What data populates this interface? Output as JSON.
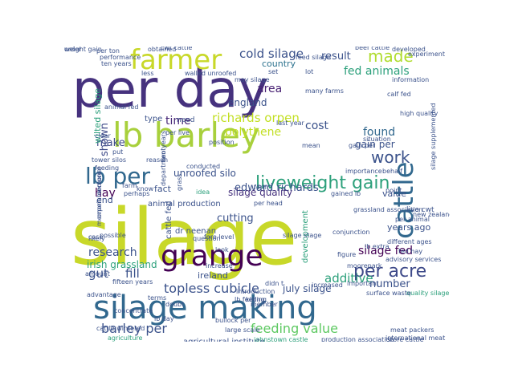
{
  "words": [
    {
      "text": "silage",
      "color": "#c8d829",
      "size": 96
    },
    {
      "text": "per day",
      "color": "#46327e",
      "size": 64
    },
    {
      "text": "silage making",
      "color": "#31688e",
      "size": 40
    },
    {
      "text": "lb barley",
      "color": "#a8d03c",
      "size": 42
    },
    {
      "text": "grange",
      "color": "#440154",
      "size": 36
    },
    {
      "text": "farmer",
      "color": "#c8d829",
      "size": 34
    },
    {
      "text": "cattle",
      "color": "#31688e",
      "size": 34
    },
    {
      "text": "lb per",
      "color": "#31688e",
      "size": 28
    },
    {
      "text": "liveweight gain",
      "color": "#2ca07b",
      "size": 22
    },
    {
      "text": "per acre",
      "color": "#3e4a89",
      "size": 22
    },
    {
      "text": "made",
      "color": "#b0dc30",
      "size": 20
    },
    {
      "text": "work",
      "color": "#3b528b",
      "size": 20
    },
    {
      "text": "cold silage",
      "color": "#3b528b",
      "size": 15
    },
    {
      "text": "richards orpen",
      "color": "#c2df23",
      "size": 15
    },
    {
      "text": "fed animals",
      "color": "#2ca07b",
      "size": 14
    },
    {
      "text": "result",
      "color": "#3b528b",
      "size": 13
    },
    {
      "text": "area",
      "color": "#482173",
      "size": 14
    },
    {
      "text": "england",
      "color": "#3b528b",
      "size": 12
    },
    {
      "text": "country",
      "color": "#2c728e",
      "size": 11
    },
    {
      "text": "shown",
      "color": "#3e4a89",
      "size": 13
    },
    {
      "text": "time",
      "color": "#482878",
      "size": 14
    },
    {
      "text": "cost",
      "color": "#3b528b",
      "size": 14
    },
    {
      "text": "polythene",
      "color": "#c2df23",
      "size": 14
    },
    {
      "text": "found",
      "color": "#31688e",
      "size": 14
    },
    {
      "text": "edward richards",
      "color": "#3b528b",
      "size": 13
    },
    {
      "text": "make",
      "color": "#3e4a89",
      "size": 13
    },
    {
      "text": "gain per",
      "color": "#3b528b",
      "size": 12
    },
    {
      "text": "hay",
      "color": "#440154",
      "size": 14
    },
    {
      "text": "unroofed silo",
      "color": "#3b528b",
      "size": 12
    },
    {
      "text": "silage quality",
      "color": "#46327e",
      "size": 12
    },
    {
      "text": "animal production",
      "color": "#3b528b",
      "size": 10
    },
    {
      "text": "cutting",
      "color": "#3b528b",
      "size": 13
    },
    {
      "text": "dr neenan",
      "color": "#3b528b",
      "size": 10
    },
    {
      "text": "research",
      "color": "#3b528b",
      "size": 14
    },
    {
      "text": "irish grassland",
      "color": "#2ca07b",
      "size": 12
    },
    {
      "text": "gut",
      "color": "#3b528b",
      "size": 15
    },
    {
      "text": "fill",
      "color": "#3b528b",
      "size": 15
    },
    {
      "text": "additive",
      "color": "#2ca07b",
      "size": 15
    },
    {
      "text": "silage fed",
      "color": "#440154",
      "size": 14
    },
    {
      "text": "number",
      "color": "#3b528b",
      "size": 13
    },
    {
      "text": "years ago",
      "color": "#3b528b",
      "size": 11
    },
    {
      "text": "topless cubicle",
      "color": "#3b528b",
      "size": 16
    },
    {
      "text": "ireland",
      "color": "#3b528b",
      "size": 11
    },
    {
      "text": "july silage",
      "color": "#3b528b",
      "size": 12
    },
    {
      "text": "barley per",
      "color": "#3b528b",
      "size": 16
    },
    {
      "text": "feeding value",
      "color": "#5ec962",
      "size": 16
    },
    {
      "text": "wilted silage",
      "color": "#2ca07b",
      "size": 11
    },
    {
      "text": "cattle fed",
      "color": "#3b528b",
      "size": 10
    },
    {
      "text": "development",
      "color": "#2ca07b",
      "size": 10
    },
    {
      "text": "value",
      "color": "#3b528b",
      "size": 11
    },
    {
      "text": "live cwt",
      "color": "#3b528b",
      "size": 9
    },
    {
      "text": "per ton",
      "color": "#3b528b",
      "size": 8
    },
    {
      "text": "obtained",
      "color": "#3b528b",
      "size": 8
    },
    {
      "text": "developed",
      "color": "#3b528b",
      "size": 8
    },
    {
      "text": "experiment",
      "color": "#3b528b",
      "size": 8
    },
    {
      "text": "fact",
      "color": "#3b528b",
      "size": 11
    },
    {
      "text": "need",
      "color": "#3b528b",
      "size": 9
    },
    {
      "text": "end",
      "color": "#3b528b",
      "size": 11
    },
    {
      "text": "perhaps",
      "color": "#3b528b",
      "size": 8
    },
    {
      "text": "case",
      "color": "#3b528b",
      "size": 8
    },
    {
      "text": "question",
      "color": "#3b528b",
      "size": 8
    },
    {
      "text": "look",
      "color": "#3b528b",
      "size": 8
    },
    {
      "text": "high quality",
      "color": "#3b528b",
      "size": 8
    },
    {
      "text": "fed hay",
      "color": "#3b528b",
      "size": 8
    },
    {
      "text": "moorepark",
      "color": "#3b528b",
      "size": 8
    },
    {
      "text": "gained lb",
      "color": "#3b528b",
      "size": 8
    },
    {
      "text": "increase",
      "color": "#3b528b",
      "size": 8
    },
    {
      "text": "doubt",
      "color": "#3b528b",
      "size": 8
    },
    {
      "text": "terms",
      "color": "#3b528b",
      "size": 8
    },
    {
      "text": "advantage",
      "color": "#3b528b",
      "size": 8
    },
    {
      "text": "lb day",
      "color": "#3b528b",
      "size": 8
    },
    {
      "text": "agriculture",
      "color": "#2ca07b",
      "size": 8
    },
    {
      "text": "agricultural institute",
      "color": "#3b528b",
      "size": 10
    },
    {
      "text": "johnstown castle",
      "color": "#2ca07b",
      "size": 8
    },
    {
      "text": "production association",
      "color": "#3b528b",
      "size": 8
    },
    {
      "text": "store cattle",
      "color": "#3b528b",
      "size": 8
    },
    {
      "text": "meat packers",
      "color": "#3b528b",
      "size": 8
    },
    {
      "text": "fifteen years",
      "color": "#3b528b",
      "size": 8
    },
    {
      "text": "important",
      "color": "#3b528b",
      "size": 8
    },
    {
      "text": "quality silage",
      "color": "#2ca07b",
      "size": 8
    },
    {
      "text": "new zealand",
      "color": "#3b528b",
      "size": 8
    },
    {
      "text": "large scale",
      "color": "#3b528b",
      "size": 8
    },
    {
      "text": "member",
      "color": "#3b528b",
      "size": 8
    },
    {
      "text": "bullock per",
      "color": "#3b528b",
      "size": 8
    },
    {
      "text": "type",
      "color": "#3b528b",
      "size": 10
    },
    {
      "text": "per live",
      "color": "#3b528b",
      "size": 8
    },
    {
      "text": "reason",
      "color": "#3b528b",
      "size": 8
    },
    {
      "text": "conducted",
      "color": "#3b528b",
      "size": 8
    },
    {
      "text": "idea",
      "color": "#2ca07b",
      "size": 8
    },
    {
      "text": "put",
      "color": "#3b528b",
      "size": 8
    },
    {
      "text": "cwt cattle",
      "color": "#3b528b",
      "size": 8
    },
    {
      "text": "beef cattle",
      "color": "#3b528b",
      "size": 8
    },
    {
      "text": "performance",
      "color": "#3b528b",
      "size": 8
    },
    {
      "text": "ten years",
      "color": "#3b528b",
      "size": 8
    },
    {
      "text": "less",
      "color": "#3b528b",
      "size": 8
    },
    {
      "text": "may silage",
      "color": "#3b528b",
      "size": 8
    },
    {
      "text": "set",
      "color": "#3b528b",
      "size": 8
    },
    {
      "text": "lot",
      "color": "#3b528b",
      "size": 8
    },
    {
      "text": "last year",
      "color": "#3b528b",
      "size": 8
    },
    {
      "text": "importance",
      "color": "#3b528b",
      "size": 8
    },
    {
      "text": "farm",
      "color": "#3b528b",
      "size": 8
    },
    {
      "text": "clear",
      "color": "#3b528b",
      "size": 8
    },
    {
      "text": "form",
      "color": "#3b528b",
      "size": 8
    },
    {
      "text": "killing",
      "color": "#3b528b",
      "size": 8
    },
    {
      "text": "lb feeding",
      "color": "#3b528b",
      "size": 8
    },
    {
      "text": "concentrate",
      "color": "#3b528b",
      "size": 8
    },
    {
      "text": "orpen memorial",
      "color": "#3b528b",
      "size": 8
    },
    {
      "text": "memorial lecture",
      "color": "#3b528b",
      "size": 8
    },
    {
      "text": "department",
      "color": "#3b528b",
      "size": 8
    },
    {
      "text": "figure",
      "color": "#3b528b",
      "size": 8
    },
    {
      "text": "didn t",
      "color": "#3b528b",
      "size": 8
    },
    {
      "text": "increased",
      "color": "#3b528b",
      "size": 8
    },
    {
      "text": "advisory services",
      "color": "#3b528b",
      "size": 8
    },
    {
      "text": "calf fed",
      "color": "#3b528b",
      "size": 8
    },
    {
      "text": "gain per",
      "color": "#3b528b",
      "size": 8
    },
    {
      "text": "silage supplemented",
      "color": "#3b528b",
      "size": 8
    },
    {
      "text": "amount",
      "color": "#3b528b",
      "size": 8
    },
    {
      "text": "cattle wintered",
      "color": "#3b528b",
      "size": 8
    },
    {
      "text": "possible",
      "color": "#3b528b",
      "size": 8
    },
    {
      "text": "likely",
      "color": "#3b528b",
      "size": 8
    },
    {
      "text": "fore level",
      "color": "#3b528b",
      "size": 8
    },
    {
      "text": "per animal",
      "color": "#3b528b",
      "size": 8
    },
    {
      "text": "conjunction",
      "color": "#3b528b",
      "size": 8
    },
    {
      "text": "different ages",
      "color": "#3b528b",
      "size": 8
    },
    {
      "text": "point",
      "color": "#3b528b",
      "size": 8
    },
    {
      "text": "behalf",
      "color": "#3b528b",
      "size": 8
    },
    {
      "text": "walled unroofed",
      "color": "#3b528b",
      "size": 8
    },
    {
      "text": "animal fed",
      "color": "#3b528b",
      "size": 8
    },
    {
      "text": "international meat",
      "color": "#3b528b",
      "size": 8
    },
    {
      "text": "information",
      "color": "#3b528b",
      "size": 8
    },
    {
      "text": "mean",
      "color": "#3b528b",
      "size": 8
    },
    {
      "text": "many farms",
      "color": "#3b528b",
      "size": 8
    },
    {
      "text": "two years",
      "color": "#3b528b",
      "size": 8
    },
    {
      "text": "position",
      "color": "#3b528b",
      "size": 8
    },
    {
      "text": "situation",
      "color": "#3b528b",
      "size": 8
    },
    {
      "text": "grassland association",
      "color": "#3b528b",
      "size": 8
    },
    {
      "text": "feed silage",
      "color": "#3b528b",
      "size": 8
    },
    {
      "text": "introduction",
      "color": "#3b528b",
      "size": 8
    },
    {
      "text": "lb extra",
      "color": "#3b528b",
      "size": 8
    },
    {
      "text": "silage stage",
      "color": "#3b528b",
      "size": 8
    },
    {
      "text": "surface waste",
      "color": "#3b528b",
      "size": 8
    },
    {
      "text": "grass",
      "color": "#3b528b",
      "size": 8
    },
    {
      "text": "per head",
      "color": "#3b528b",
      "size": 8
    },
    {
      "text": "tower silos",
      "color": "#3b528b",
      "size": 8
    },
    {
      "text": "feeding",
      "color": "#3b528b",
      "size": 8
    },
    {
      "text": "know",
      "color": "#3b528b",
      "size": 8
    },
    {
      "text": "weight gain",
      "color": "#3b528b",
      "size": 8
    },
    {
      "text": "order",
      "color": "#3b528b",
      "size": 8
    }
  ]
}
